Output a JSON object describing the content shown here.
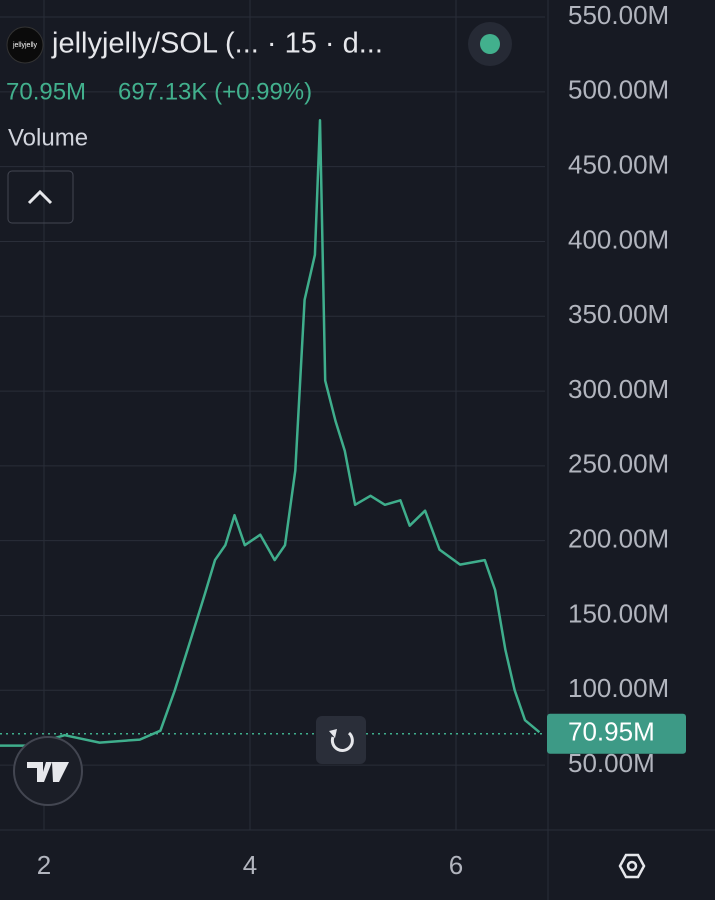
{
  "chart_data": {
    "type": "line",
    "title": "jellyjelly/SOL (... · 15 · d...",
    "logo_text": "jellyjelly",
    "last_price": {
      "value": 70950000,
      "label": "70.95M"
    },
    "change": "697.13K (+0.99%)",
    "indicator": "Volume",
    "x": [
      1.57,
      1.86,
      2.2,
      2.54,
      2.93,
      3.13,
      3.27,
      3.42,
      3.56,
      3.66,
      3.76,
      3.85,
      3.95,
      4.1,
      4.24,
      4.34,
      4.44,
      4.53,
      4.63,
      4.68,
      4.73,
      4.83,
      4.92,
      5.02,
      5.17,
      5.31,
      5.46,
      5.55,
      5.7,
      5.84,
      6.04,
      6.28,
      6.38,
      6.48,
      6.57,
      6.67,
      6.81
    ],
    "series": [
      {
        "name": "jellyjelly/SOL",
        "color": "#3fae8c",
        "values": [
          63000000,
          63000000,
          70000000,
          65000000,
          67000000,
          73000000,
          100000000,
          133000000,
          164000000,
          187000000,
          197000000,
          217000000,
          197000000,
          204000000,
          187000000,
          197000000,
          247000000,
          361000000,
          391000000,
          481000000,
          307000000,
          280000000,
          260000000,
          224000000,
          230000000,
          224000000,
          227000000,
          210000000,
          220000000,
          194000000,
          184000000,
          187000000,
          167000000,
          127000000,
          100000000,
          80000000,
          72000000
        ]
      }
    ],
    "xlim": [
      1.573,
      6.864
    ],
    "xticks": [
      2,
      4,
      6
    ],
    "ylim": [
      6600000,
      561400000
    ],
    "yticks": [
      {
        "value": 50000000,
        "label": "50.00M"
      },
      {
        "value": 100000000,
        "label": "100.00M"
      },
      {
        "value": 150000000,
        "label": "150.00M"
      },
      {
        "value": 200000000,
        "label": "200.00M"
      },
      {
        "value": 250000000,
        "label": "250.00M"
      },
      {
        "value": 300000000,
        "label": "300.00M"
      },
      {
        "value": 350000000,
        "label": "350.00M"
      },
      {
        "value": 400000000,
        "label": "400.00M"
      },
      {
        "value": 450000000,
        "label": "450.00M"
      },
      {
        "value": 500000000,
        "label": "500.00M"
      },
      {
        "value": 550000000,
        "label": "550.00M"
      }
    ],
    "grid": true
  }
}
